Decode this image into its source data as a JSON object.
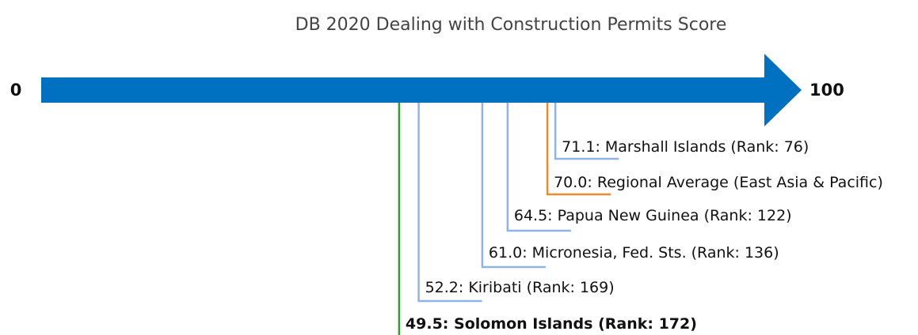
{
  "chart_data": {
    "type": "number-line",
    "title": "DB 2020 Dealing with Construction Permits Score",
    "xlim": [
      0,
      100
    ],
    "xticks": [
      0,
      100
    ],
    "values": [
      71.1,
      70.0,
      64.5,
      61.0,
      52.2,
      49.5
    ],
    "value_labels": [
      "71.1: Marshall Islands (Rank: 76)",
      "70.0: Regional Average (East Asia & Pacific)",
      "64.5: Papua New Guinea (Rank: 122)",
      "61.0: Micronesia, Fed. Sts. (Rank: 136)",
      "52.2: Kiribati (Rank: 169)",
      "49.5: Solomon Islands (Rank: 172)"
    ],
    "colors": [
      "#8db3ea",
      "#ee8a2e",
      "#8db3ea",
      "#8db3ea",
      "#8db3ea",
      "#2ca02c"
    ],
    "bold": [
      false,
      false,
      false,
      false,
      false,
      true
    ],
    "axis_color": "#0070c0"
  }
}
